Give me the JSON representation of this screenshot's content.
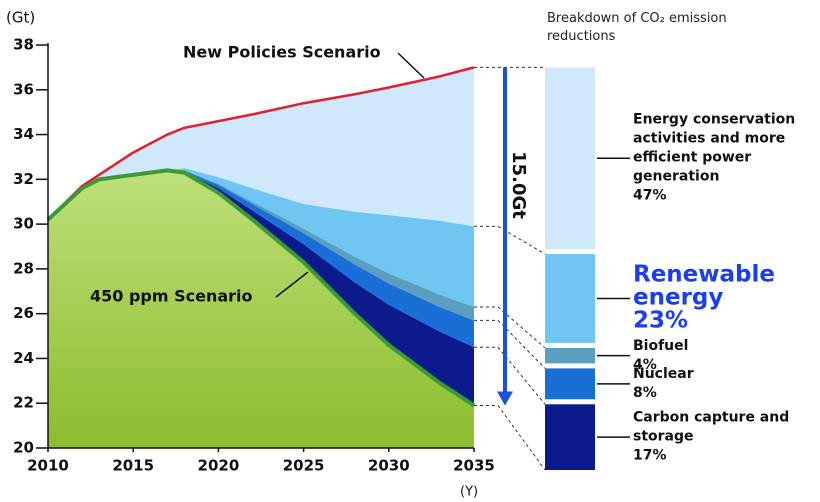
{
  "chart_data": [
    {
      "type": "area",
      "y_label": "(Gt)",
      "x_label": "(Y)",
      "annotation": "15.0Gt",
      "x": [
        2010,
        2012,
        2013,
        2015,
        2017,
        2018,
        2020,
        2022,
        2025,
        2028,
        2030,
        2033,
        2035
      ],
      "xlim": [
        2010,
        2035
      ],
      "xticks": [
        2010,
        2015,
        2020,
        2025,
        2030,
        2035
      ],
      "ylim": [
        20,
        38
      ],
      "yticks": [
        20,
        22,
        24,
        26,
        28,
        30,
        32,
        34,
        36,
        38
      ],
      "series": [
        {
          "name": "450 ppm Scenario",
          "color": "#3c9a35",
          "values": [
            30.2,
            31.6,
            32.0,
            32.2,
            32.4,
            32.3,
            31.4,
            30.2,
            28.3,
            26.0,
            24.6,
            22.9,
            21.9
          ]
        },
        {
          "name": "New Policies Scenario",
          "color": "#e0202e",
          "values": [
            30.2,
            31.7,
            32.2,
            33.2,
            34.0,
            34.3,
            34.6,
            34.9,
            35.4,
            35.8,
            36.1,
            36.6,
            37.0
          ]
        }
      ],
      "wedges": [
        {
          "color": "#0b1a8c",
          "values": [
            0,
            0,
            0,
            0,
            0,
            0.05,
            0.2,
            0.4,
            0.8,
            1.4,
            1.8,
            2.3,
            2.6
          ]
        },
        {
          "color": "#1a6fd6",
          "values": [
            0,
            0,
            0,
            0,
            0,
            0.05,
            0.15,
            0.3,
            0.5,
            0.8,
            0.95,
            1.1,
            1.2
          ]
        },
        {
          "color": "#5a9fc0",
          "values": [
            0,
            0,
            0,
            0,
            0,
            0,
            0.05,
            0.1,
            0.2,
            0.35,
            0.45,
            0.55,
            0.6
          ]
        },
        {
          "color": "#6fc6f3",
          "values": [
            0,
            0,
            0,
            0,
            0,
            0.1,
            0.3,
            0.6,
            1.1,
            2.0,
            2.6,
            3.3,
            3.6
          ]
        },
        {
          "color": "#cfe8fa",
          "values": [
            0,
            0.1,
            0.2,
            1.0,
            1.6,
            1.8,
            2.5,
            3.3,
            4.5,
            5.25,
            5.7,
            6.45,
            7.1
          ]
        }
      ]
    },
    {
      "type": "stacked_bar",
      "title": "Breakdown of CO₂ emission reductions",
      "categories": [
        "Energy conservation activities and more efficient power generation",
        "Renewable energy",
        "Biofuel",
        "Nuclear",
        "Carbon capture and storage"
      ],
      "values": [
        47,
        23,
        4,
        8,
        17
      ],
      "value_labels": [
        "47%",
        "23%",
        "4%",
        "8%",
        "17%"
      ],
      "colors": [
        "#cfe8fa",
        "#6fc6f3",
        "#5a9fc0",
        "#1a6fd6",
        "#0b1a8c"
      ]
    }
  ]
}
